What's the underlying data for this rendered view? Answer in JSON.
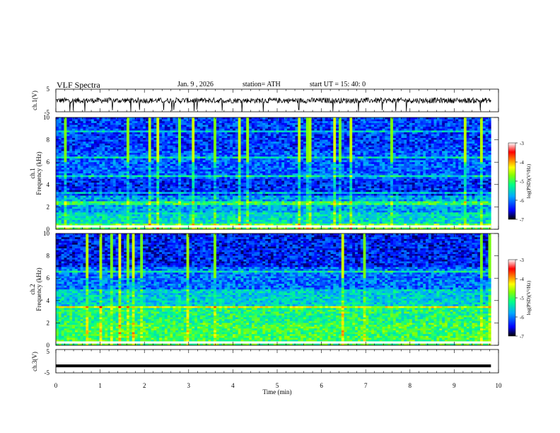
{
  "header": {
    "title": "VLF  Spectra",
    "date": "Jan.  9  , 2026",
    "station": "station= ATH",
    "start": "start  UT  =   15: 40: 0"
  },
  "chart_data": [
    {
      "id": "ch1-waveform",
      "type": "line",
      "ylabel": "ch.1(V)",
      "ylim": [
        -5,
        5
      ],
      "yticks": [
        5,
        -5
      ],
      "xlim": [
        0,
        10
      ],
      "data_x_range": [
        0,
        9.83
      ],
      "description_level": 0.0,
      "noise_amplitude": 1.2
    },
    {
      "id": "ch1-spectrogram",
      "type": "heatmap",
      "ylabel_lines": [
        "ch.1",
        "Frequency  (kHz)"
      ],
      "ylim": [
        0,
        10
      ],
      "yticks": [
        0,
        2,
        4,
        6,
        8,
        10
      ],
      "xlim": [
        0,
        10
      ],
      "data_x_range": [
        0,
        9.83
      ],
      "colorbar": {
        "label": "log(PSD)(V²/Hz)",
        "range": [
          -7,
          -3
        ],
        "ticks": [
          -3,
          -4,
          -5,
          -6,
          -7
        ]
      }
    },
    {
      "id": "ch2-spectrogram",
      "type": "heatmap",
      "ylabel_lines": [
        "ch.2",
        "Frequency  (kHz)"
      ],
      "ylim": [
        0,
        10
      ],
      "yticks": [
        0,
        2,
        4,
        6,
        8,
        10
      ],
      "xlim": [
        0,
        10
      ],
      "data_x_range": [
        0,
        9.83
      ],
      "colorbar": {
        "label": "log(PSD)(V²/Hz)",
        "range": [
          -7,
          -3
        ],
        "ticks": [
          -3,
          -4,
          -5,
          -6,
          -7
        ]
      }
    },
    {
      "id": "ch3-waveform",
      "type": "line",
      "ylabel": "ch.3(V)",
      "ylim": [
        -5,
        5
      ],
      "yticks": [
        5,
        -5
      ],
      "xlim": [
        0,
        10
      ],
      "xticks": [
        0,
        1,
        2,
        3,
        4,
        5,
        6,
        7,
        8,
        9,
        10
      ],
      "xlabel": "Time  (min)",
      "data_x_range": [
        0,
        9.83
      ],
      "level": -2.0
    }
  ],
  "colors": {
    "scale": [
      "#000000",
      "#0000ff",
      "#00aaff",
      "#00ff88",
      "#88ff00",
      "#ffff00",
      "#ff8800",
      "#ff0000",
      "#ffffff"
    ]
  }
}
